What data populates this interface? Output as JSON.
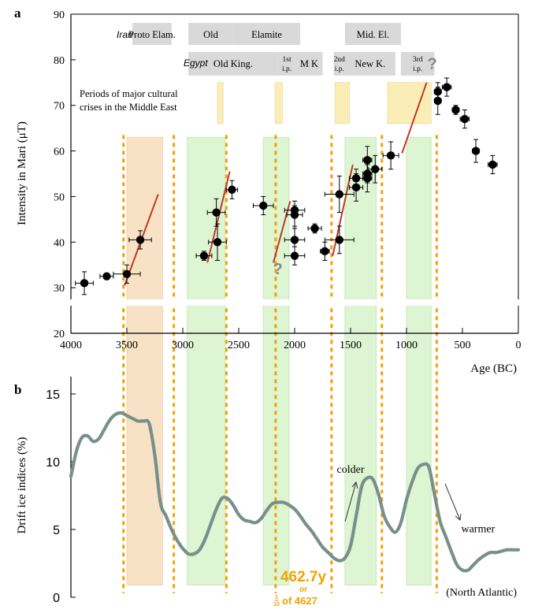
{
  "chart_data": [
    {
      "type": "scatter",
      "panel_label": "a",
      "xlabel": "Age (BC)",
      "ylabel": "Intensity in Mari (μT)",
      "xlim": [
        4000,
        0
      ],
      "ylim": [
        20,
        90
      ],
      "x_ticks": [
        4000,
        3500,
        3000,
        2500,
        2000,
        1500,
        1000,
        500,
        0
      ],
      "y_ticks": [
        20,
        30,
        40,
        50,
        60,
        70,
        80,
        90
      ],
      "axis_break_y": 25,
      "periods": {
        "iran_label": "Iran",
        "egypt_label": "Egypt",
        "iran": [
          {
            "label": "Proto Elam.",
            "start": 3450,
            "end": 3100
          },
          {
            "label": "Old",
            "start": 2950,
            "end": 2550
          },
          {
            "label": "Elamite",
            "start": 2550,
            "end": 1950
          },
          {
            "label": "Mid. El.",
            "start": 1550,
            "end": 1050
          }
        ],
        "egypt": [
          {
            "label": "Old King.",
            "start": 2950,
            "end": 2150
          },
          {
            "label": "1st",
            "label2": "i.p.",
            "start": 2150,
            "end": 1990
          },
          {
            "label": "M K",
            "start": 1990,
            "end": 1750
          },
          {
            "label": "2nd",
            "label2": "i.p.",
            "start": 1650,
            "end": 1550
          },
          {
            "label": "New K.",
            "start": 1550,
            "end": 1100
          },
          {
            "label": "3rd",
            "label2": "i.p.",
            "start": 1050,
            "end": 750
          }
        ]
      },
      "crises_label_line1": "Periods of major cultural",
      "crises_label_line2": "crises in the Middle East",
      "crises": [
        {
          "start": 2690,
          "end": 2640
        },
        {
          "start": 2175,
          "end": 2110
        },
        {
          "start": 1640,
          "end": 1510
        },
        {
          "start": 1170,
          "end": 780
        }
      ],
      "question_marks": [
        {
          "text": "?",
          "x": 2150,
          "y": 33
        },
        {
          "text": "?",
          "x": 770,
          "y": 78
        }
      ],
      "points": [
        {
          "x": 3880,
          "y": 31,
          "xerr": 80,
          "yerr": 2.5
        },
        {
          "x": 3680,
          "y": 32.5,
          "xerr": 60,
          "yerr": 0
        },
        {
          "x": 3500,
          "y": 33,
          "xerr": 120,
          "yerr": 2
        },
        {
          "x": 3380,
          "y": 40.5,
          "xerr": 100,
          "yerr": 2
        },
        {
          "x": 2810,
          "y": 37,
          "xerr": 70,
          "yerr": 1
        },
        {
          "x": 2700,
          "y": 46.5,
          "xerr": 80,
          "yerr": 3
        },
        {
          "x": 2690,
          "y": 40,
          "xerr": 80,
          "yerr": 4
        },
        {
          "x": 2560,
          "y": 51.5,
          "xerr": 50,
          "yerr": 2
        },
        {
          "x": 2280,
          "y": 48,
          "xerr": 90,
          "yerr": 2
        },
        {
          "x": 2000,
          "y": 47,
          "xerr": 90,
          "yerr": 1
        },
        {
          "x": 2000,
          "y": 46,
          "xerr": 70,
          "yerr": 3
        },
        {
          "x": 2000,
          "y": 40.5,
          "xerr": 90,
          "yerr": 3
        },
        {
          "x": 2000,
          "y": 37,
          "xerr": 90,
          "yerr": 2
        },
        {
          "x": 1820,
          "y": 43,
          "xerr": 60,
          "yerr": 1
        },
        {
          "x": 1730,
          "y": 38,
          "xerr": 40,
          "yerr": 2
        },
        {
          "x": 1600,
          "y": 50.5,
          "xerr": 130,
          "yerr": 4
        },
        {
          "x": 1600,
          "y": 40.5,
          "xerr": 130,
          "yerr": 3
        },
        {
          "x": 1450,
          "y": 54,
          "xerr": 60,
          "yerr": 2
        },
        {
          "x": 1450,
          "y": 52,
          "xerr": 60,
          "yerr": 3
        },
        {
          "x": 1350,
          "y": 58,
          "xerr": 40,
          "yerr": 3
        },
        {
          "x": 1350,
          "y": 55,
          "xerr": 40,
          "yerr": 2
        },
        {
          "x": 1350,
          "y": 54,
          "xerr": 40,
          "yerr": 3
        },
        {
          "x": 1280,
          "y": 56,
          "xerr": 60,
          "yerr": 3
        },
        {
          "x": 1140,
          "y": 59,
          "xerr": 70,
          "yerr": 3
        },
        {
          "x": 720,
          "y": 73,
          "xerr": 30,
          "yerr": 2
        },
        {
          "x": 720,
          "y": 71,
          "xerr": 30,
          "yerr": 3
        },
        {
          "x": 640,
          "y": 74,
          "xerr": 40,
          "yerr": 2
        },
        {
          "x": 560,
          "y": 69,
          "xerr": 30,
          "yerr": 1
        },
        {
          "x": 480,
          "y": 67,
          "xerr": 40,
          "yerr": 2
        },
        {
          "x": 380,
          "y": 60,
          "xerr": 30,
          "yerr": 2.5
        },
        {
          "x": 230,
          "y": 57,
          "xerr": 40,
          "yerr": 2
        }
      ],
      "trend_lines": [
        {
          "x1": 3520,
          "y1": 30.5,
          "x2": 3220,
          "y2": 50.5
        },
        {
          "x1": 2780,
          "y1": 35.5,
          "x2": 2580,
          "y2": 55.5
        },
        {
          "x1": 2190,
          "y1": 35.5,
          "x2": 2040,
          "y2": 49
        },
        {
          "x1": 1660,
          "y1": 37,
          "x2": 1480,
          "y2": 57
        },
        {
          "x1": 1040,
          "y1": 59.5,
          "x2": 820,
          "y2": 75
        }
      ]
    },
    {
      "type": "line",
      "panel_label": "b",
      "ylabel": "Drift ice indices (%)",
      "xlim": [
        4000,
        0
      ],
      "ylim": [
        0,
        15
      ],
      "y_ticks": [
        0,
        5,
        10,
        15
      ],
      "series_label": "(North Atlantic)",
      "annotations": [
        {
          "text": "colder",
          "x": 1500,
          "y": 9.2
        },
        {
          "text": "warmer",
          "x": 360,
          "y": 4.8
        }
      ],
      "series": [
        {
          "x": [
            4000,
            3950,
            3900,
            3850,
            3800,
            3750,
            3700,
            3650,
            3600,
            3550,
            3500,
            3450,
            3400,
            3350,
            3300,
            3250,
            3200,
            3150,
            3100,
            3050,
            3000,
            2950,
            2900,
            2850,
            2800,
            2750,
            2700,
            2650,
            2600,
            2550,
            2500,
            2450,
            2400,
            2350,
            2300,
            2250,
            2200,
            2150,
            2100,
            2050,
            2000,
            1950,
            1900,
            1850,
            1800,
            1750,
            1700,
            1650,
            1600,
            1550,
            1500,
            1450,
            1400,
            1350,
            1300,
            1250,
            1200,
            1150,
            1100,
            1050,
            1000,
            950,
            900,
            850,
            800,
            750,
            700,
            650,
            600,
            550,
            500,
            450,
            400,
            350,
            300,
            250,
            200,
            150,
            100,
            50,
            0
          ],
          "y": [
            8.9,
            10.8,
            11.8,
            11.9,
            11.5,
            11.7,
            12.4,
            13.1,
            13.5,
            13.6,
            13.4,
            13.2,
            13.0,
            13.0,
            12.8,
            10.5,
            7.0,
            6.0,
            5.0,
            4.2,
            3.6,
            3.2,
            3.2,
            3.5,
            4.3,
            5.4,
            6.5,
            7.3,
            7.3,
            6.8,
            6.1,
            5.7,
            5.6,
            5.5,
            5.8,
            6.4,
            6.9,
            7.0,
            7.0,
            6.8,
            6.5,
            6.0,
            5.4,
            4.9,
            4.3,
            3.7,
            3.3,
            2.9,
            2.7,
            2.9,
            3.8,
            6.0,
            8.2,
            8.8,
            8.7,
            7.6,
            6.0,
            5.2,
            4.8,
            5.5,
            7.2,
            8.5,
            9.5,
            9.8,
            9.6,
            7.6,
            5.6,
            4.5,
            3.4,
            2.4,
            2.0,
            2.0,
            2.4,
            2.8,
            3.1,
            3.3,
            3.3,
            3.4,
            3.5,
            3.5,
            3.5
          ]
        }
      ]
    }
  ],
  "shaded_bands": [
    {
      "start": 3500,
      "end": 3180,
      "color": "#f8e2c6"
    },
    {
      "start": 2960,
      "end": 2620,
      "color": "#ddf5d2"
    },
    {
      "start": 2280,
      "end": 2050,
      "color": "#ddf5d2"
    },
    {
      "start": 1550,
      "end": 1270,
      "color": "#ddf5d2"
    },
    {
      "start": 1000,
      "end": 780,
      "color": "#ddf5d2"
    }
  ],
  "dotted_lines": [
    3530,
    3080,
    2610,
    2170,
    1670,
    1220,
    730
  ],
  "overlay": {
    "main": "462.7y",
    "or": "or",
    "frac_num": "1",
    "frac_den": "10",
    "frac_rest": "of 4627"
  },
  "colors": {
    "orange_band": "#f8e2c6",
    "green_band": "#ddf5d2",
    "crisis_box": "#fbedb6",
    "period_box": "#d9d9d9",
    "dotted_line": "#f2a200",
    "trend_line": "#c0392b",
    "drift_line": "#78908b",
    "overlay_text": "#f2a200"
  }
}
